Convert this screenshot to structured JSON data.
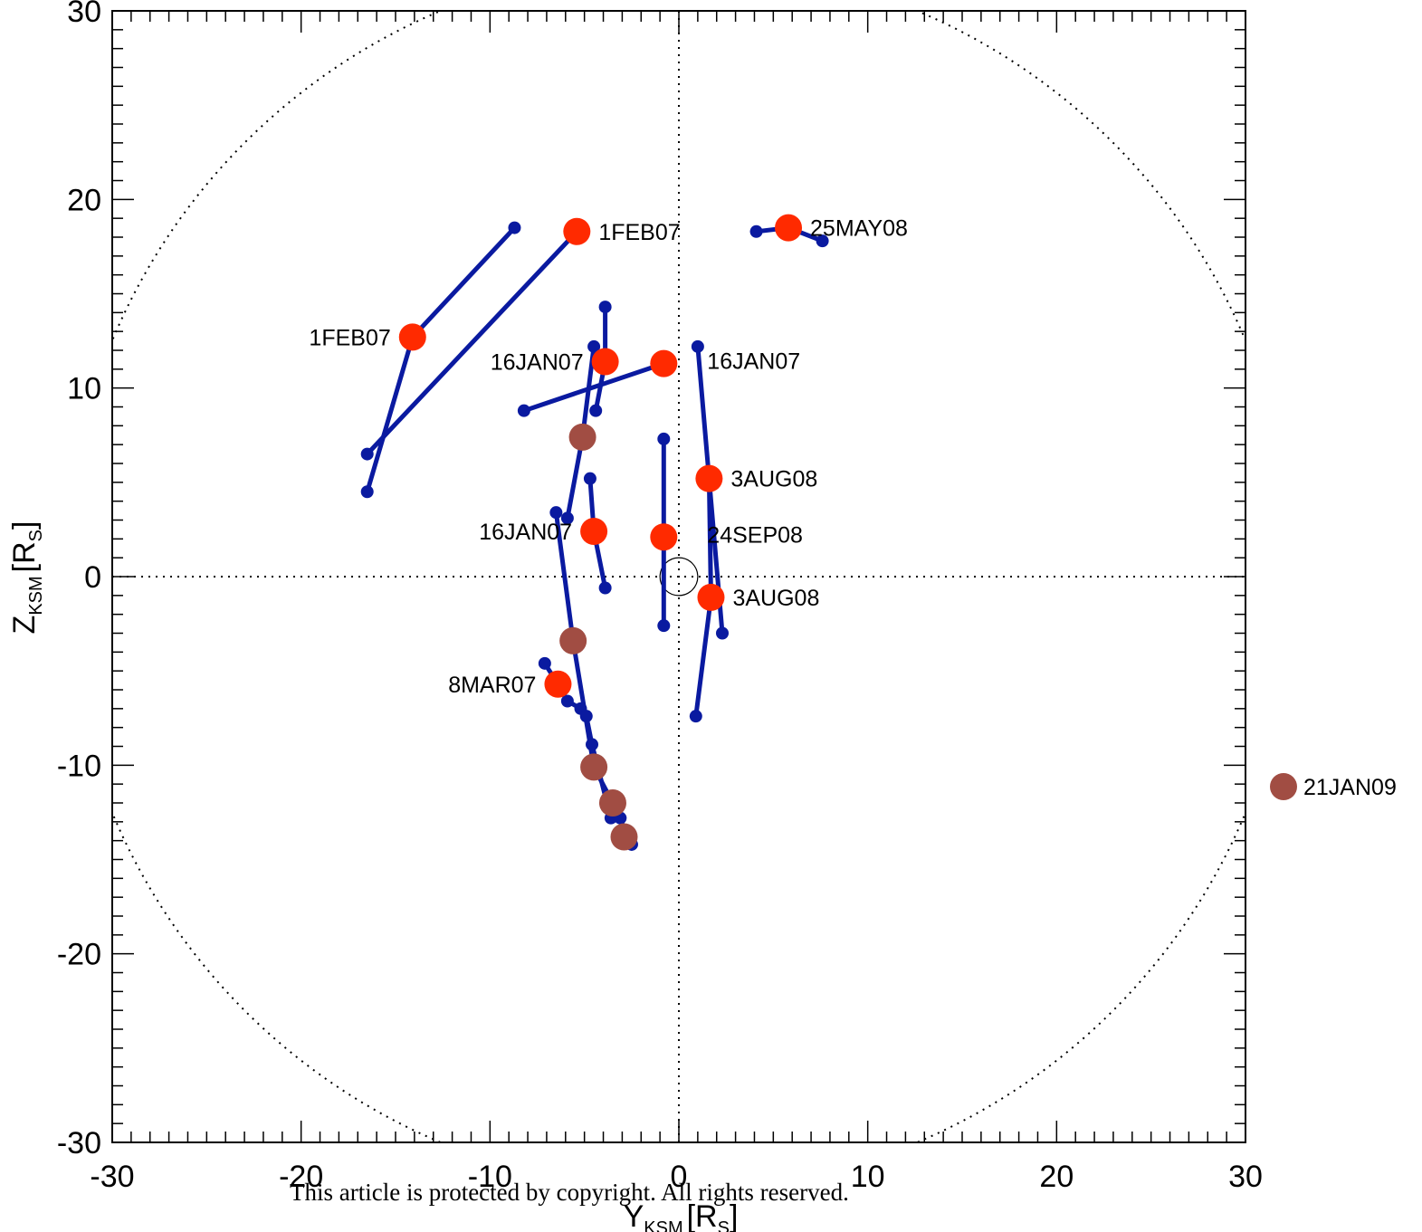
{
  "footer_text": "This article is protected by copyright. All rights reserved.",
  "chart_data": {
    "type": "scatter",
    "xlabel_main": "Y",
    "xlabel_sub": "KSM",
    "xlabel_unit_open": "[R",
    "xlabel_unit_sub": "S",
    "xlabel_unit_close": "]",
    "ylabel_main": "Z",
    "ylabel_sub": "KSM",
    "ylabel_unit_open": "[R",
    "ylabel_unit_sub": "S",
    "ylabel_unit_close": "]",
    "xlim": [
      -30,
      30
    ],
    "ylim": [
      -30,
      30
    ],
    "xticks": [
      -30,
      -20,
      -10,
      0,
      10,
      20,
      30
    ],
    "yticks": [
      -30,
      -20,
      -10,
      0,
      10,
      20,
      30
    ],
    "minor_tick_step": 1,
    "colors": {
      "track": "#0a1aa0",
      "event_red": "#ff2a00",
      "event_brown": "#a14d43",
      "reference": "#000000"
    },
    "tracks": [
      {
        "points": [
          [
            -8.7,
            18.5
          ],
          [
            -14.1,
            12.7
          ],
          [
            -16.5,
            4.5
          ]
        ]
      },
      {
        "points": [
          [
            -5.4,
            18.3
          ],
          [
            -16.5,
            6.5
          ]
        ]
      },
      {
        "points": [
          [
            -3.9,
            14.3
          ],
          [
            -3.9,
            11.4
          ],
          [
            -4.4,
            8.8
          ]
        ]
      },
      {
        "points": [
          [
            -4.5,
            12.2
          ],
          [
            -5.1,
            7.4
          ],
          [
            -5.9,
            3.1
          ]
        ]
      },
      {
        "points": [
          [
            -8.2,
            8.8
          ],
          [
            -0.8,
            11.3
          ]
        ]
      },
      {
        "points": [
          [
            -4.7,
            5.2
          ],
          [
            -4.5,
            2.4
          ],
          [
            -3.9,
            -0.6
          ]
        ]
      },
      {
        "points": [
          [
            -0.8,
            7.3
          ],
          [
            -0.8,
            2.1
          ],
          [
            -0.8,
            -2.6
          ]
        ]
      },
      {
        "points": [
          [
            1.0,
            12.2
          ],
          [
            1.6,
            5.2
          ],
          [
            2.3,
            -3.0
          ]
        ]
      },
      {
        "points": [
          [
            1.6,
            5.2
          ],
          [
            1.7,
            -1.1
          ],
          [
            0.9,
            -7.4
          ]
        ]
      },
      {
        "points": [
          [
            -6.5,
            3.4
          ],
          [
            -5.6,
            -3.4
          ],
          [
            -4.5,
            -10.1
          ],
          [
            -3.5,
            -12.0
          ],
          [
            -2.5,
            -14.2
          ]
        ]
      },
      {
        "points": [
          [
            -7.1,
            -4.6
          ],
          [
            -6.4,
            -5.7
          ],
          [
            -5.9,
            -6.6
          ],
          [
            -5.2,
            -7.0
          ],
          [
            -4.9,
            -7.4
          ],
          [
            -4.6,
            -8.9
          ],
          [
            -3.6,
            -12.8
          ],
          [
            -3.1,
            -12.8
          ],
          [
            -2.9,
            -13.8
          ],
          [
            -2.5,
            -14.2
          ]
        ]
      },
      {
        "points": [
          [
            4.1,
            18.3
          ],
          [
            5.8,
            18.5
          ],
          [
            7.6,
            17.8
          ]
        ]
      }
    ],
    "events": [
      {
        "x": -5.4,
        "y": 18.3,
        "color": "red",
        "label": "1FEB07",
        "side": "right"
      },
      {
        "x": 5.8,
        "y": 18.5,
        "color": "red",
        "label": "25MAY08",
        "side": "right"
      },
      {
        "x": -14.1,
        "y": 12.7,
        "color": "red",
        "label": "1FEB07",
        "side": "left"
      },
      {
        "x": -3.9,
        "y": 11.4,
        "color": "red",
        "label": "16JAN07",
        "side": "left"
      },
      {
        "x": -0.8,
        "y": 11.3,
        "color": "red",
        "label": "16JAN07",
        "side": "right-far"
      },
      {
        "x": -5.1,
        "y": 7.4,
        "color": "brown",
        "label": "",
        "side": "none"
      },
      {
        "x": 1.6,
        "y": 5.2,
        "color": "red",
        "label": "3AUG08",
        "side": "right"
      },
      {
        "x": -4.5,
        "y": 2.4,
        "color": "red",
        "label": "16JAN07",
        "side": "left"
      },
      {
        "x": -0.8,
        "y": 2.1,
        "color": "red",
        "label": "24SEP08",
        "side": "right-far"
      },
      {
        "x": 1.7,
        "y": -1.1,
        "color": "red",
        "label": "3AUG08",
        "side": "right"
      },
      {
        "x": -5.6,
        "y": -3.4,
        "color": "brown",
        "label": "",
        "side": "none"
      },
      {
        "x": -6.4,
        "y": -5.7,
        "color": "red",
        "label": "8MAR07",
        "side": "left"
      },
      {
        "x": -4.5,
        "y": -10.1,
        "color": "brown",
        "label": "",
        "side": "none"
      },
      {
        "x": -3.5,
        "y": -12.0,
        "color": "brown",
        "label": "",
        "side": "none"
      },
      {
        "x": -2.9,
        "y": -13.8,
        "color": "brown",
        "label": "",
        "side": "none"
      }
    ],
    "outside_marker": {
      "color": "brown",
      "label": "21JAN09"
    },
    "reference_circle_radius": 1,
    "dashed_boundary_radius": 32.5,
    "grid": false,
    "zero_lines": "dotted"
  }
}
